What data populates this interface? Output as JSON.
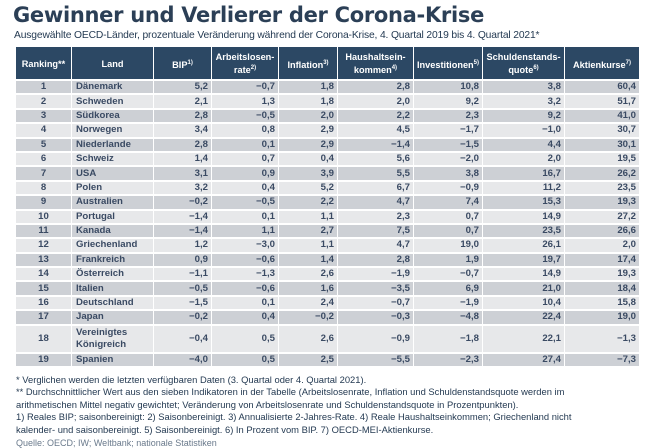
{
  "title": "Gewinner und Verlierer der Corona-Krise",
  "subtitle": "Ausgewählte OECD-Länder, prozentuale Veränderung während der Corona-Krise, 4. Quartal 2019 bis 4. Quartal 2021*",
  "table": {
    "headers": [
      {
        "label": "Ranking**",
        "sup": ""
      },
      {
        "label": "Land",
        "sup": ""
      },
      {
        "label": "BIP",
        "sup": "1)"
      },
      {
        "label": "Arbeitslosen-rate",
        "sup": "2)"
      },
      {
        "label": "Inflation",
        "sup": "3)"
      },
      {
        "label": "Haushaltsein-kommen",
        "sup": "4)"
      },
      {
        "label": "Investitionen",
        "sup": "5)"
      },
      {
        "label": "Schuldenstands-quote",
        "sup": "6)"
      },
      {
        "label": "Aktienkurse",
        "sup": "7)"
      }
    ],
    "rows": [
      [
        "1",
        "Dänemark",
        "5,2",
        "−0,7",
        "1,8",
        "2,8",
        "10,8",
        "3,8",
        "60,4"
      ],
      [
        "2",
        "Schweden",
        "2,1",
        "1,3",
        "1,8",
        "2,0",
        "9,2",
        "3,2",
        "51,7"
      ],
      [
        "3",
        "Südkorea",
        "2,8",
        "−0,5",
        "2,0",
        "2,2",
        "2,3",
        "9,2",
        "41,0"
      ],
      [
        "4",
        "Norwegen",
        "3,4",
        "0,8",
        "2,9",
        "4,5",
        "−1,7",
        "−1,0",
        "30,7"
      ],
      [
        "5",
        "Niederlande",
        "2,8",
        "0,1",
        "2,9",
        "−1,4",
        "−1,5",
        "4,4",
        "30,1"
      ],
      [
        "6",
        "Schweiz",
        "1,4",
        "0,7",
        "0,4",
        "5,6",
        "−2,0",
        "2,0",
        "19,5"
      ],
      [
        "7",
        "USA",
        "3,1",
        "0,9",
        "3,9",
        "5,5",
        "3,8",
        "16,7",
        "26,2"
      ],
      [
        "8",
        "Polen",
        "3,2",
        "0,4",
        "5,2",
        "6,7",
        "−0,9",
        "11,2",
        "23,5"
      ],
      [
        "9",
        "Australien",
        "−0,2",
        "−0,5",
        "2,2",
        "4,7",
        "7,4",
        "15,3",
        "19,3"
      ],
      [
        "10",
        "Portugal",
        "−1,4",
        "0,1",
        "1,1",
        "2,3",
        "0,7",
        "14,9",
        "27,2"
      ],
      [
        "11",
        "Kanada",
        "−1,4",
        "1,1",
        "2,7",
        "7,5",
        "0,7",
        "23,5",
        "26,6"
      ],
      [
        "12",
        "Griechenland",
        "1,2",
        "−3,0",
        "1,1",
        "4,7",
        "19,0",
        "26,1",
        "2,0"
      ],
      [
        "13",
        "Frankreich",
        "0,9",
        "−0,6",
        "1,4",
        "2,8",
        "1,9",
        "19,7",
        "17,4"
      ],
      [
        "14",
        "Österreich",
        "−1,1",
        "−1,3",
        "2,6",
        "−1,9",
        "−0,7",
        "14,9",
        "19,3"
      ],
      [
        "15",
        "Italien",
        "−0,5",
        "−0,6",
        "1,6",
        "−3,5",
        "6,9",
        "21,0",
        "18,4"
      ],
      [
        "16",
        "Deutschland",
        "−1,5",
        "0,1",
        "2,4",
        "−0,7",
        "−1,9",
        "10,4",
        "15,8"
      ],
      [
        "17",
        "Japan",
        "−0,2",
        "0,4",
        "−0,2",
        "−0,3",
        "−4,8",
        "22,4",
        "19,0"
      ],
      [
        "18",
        "Vereinigtes Königreich",
        "−0,4",
        "0,5",
        "2,6",
        "−0,9",
        "−1,8",
        "22,1",
        "−1,3"
      ],
      [
        "19",
        "Spanien",
        "−4,0",
        "0,5",
        "2,5",
        "−5,5",
        "−2,3",
        "27,4",
        "−7,3"
      ]
    ]
  },
  "footnotes": [
    "* Verglichen werden die letzten verfügbaren Daten (3. Quartal oder 4. Quartal 2021).",
    "** Durchschnittlicher Wert aus den sieben Indikatoren in der Tabelle (Arbeitslosenrate, Inflation und Schuldenstandsquote werden im",
    "arithmetischen Mittel negativ gewichtet; Veränderung von Arbeitslosenrate und Schuldenstandsquote in Prozentpunkten).",
    "1) Reales BIP; saisonbereinigt: 2) Saisonbereinigt. 3) Annualisierte 2-Jahres-Rate. 4) Reale Haushaltseinkommen; Griechenland nicht",
    "kalender- und saisonbereinigt. 5) Saisonbereinigt. 6) In Prozent vom BIP. 7) OECD-MEI-Aktienkurse."
  ],
  "source_cut": "Quelle: OECD; IW; Weltbank; nationale Statistiken"
}
